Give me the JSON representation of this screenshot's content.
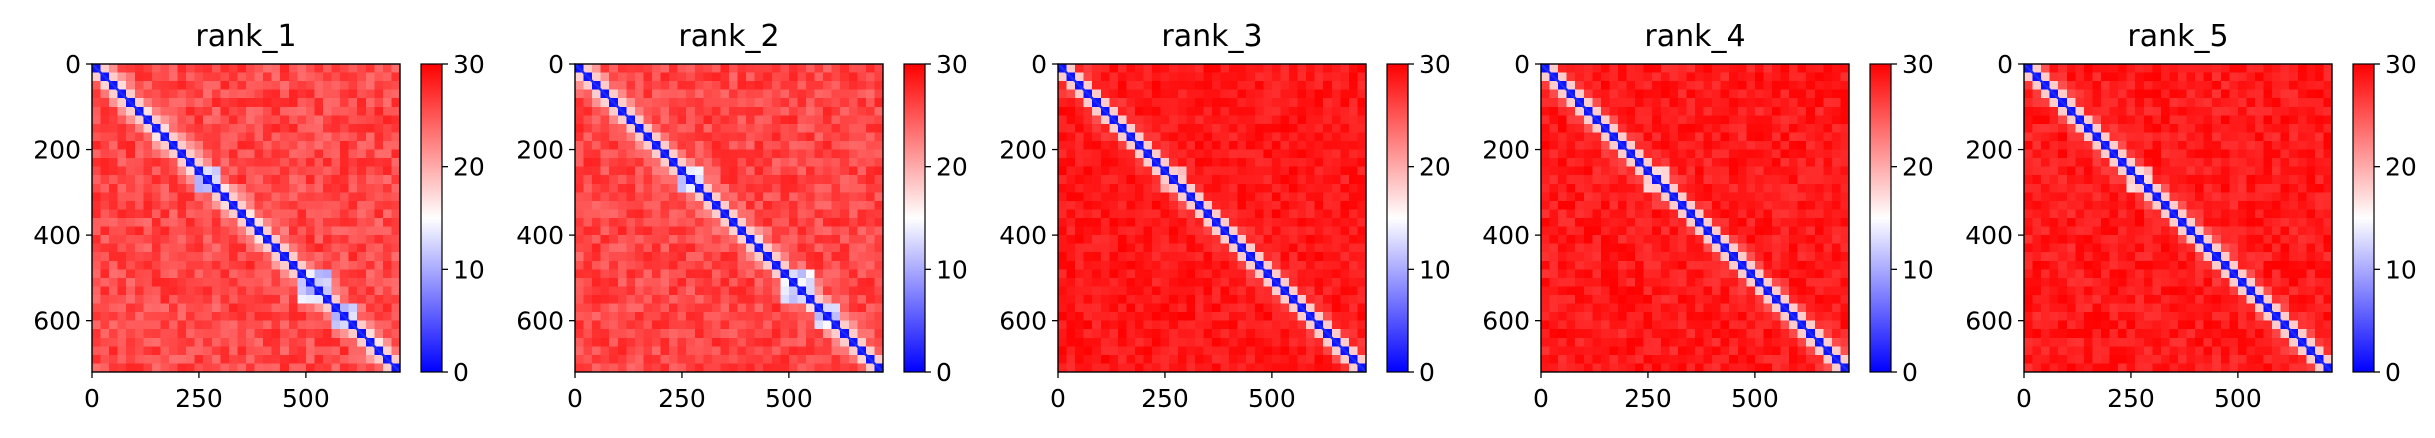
{
  "chart_data": [
    {
      "type": "heatmap",
      "title": "rank_1",
      "x_ticks": [
        0,
        250,
        500
      ],
      "y_ticks": [
        0,
        200,
        400,
        600
      ],
      "colorbar_ticks": [
        0,
        10,
        20,
        30
      ],
      "xlim": [
        0,
        720
      ],
      "ylim": [
        720,
        0
      ],
      "vmin": 0,
      "vmax": 30,
      "colormap": [
        "#0000ff",
        "#ffffff",
        "#ff0000"
      ],
      "features": {
        "background": 28,
        "diagonal": 1,
        "domain_blocks": [
          [
            250,
            300
          ],
          [
            480,
            560
          ],
          [
            560,
            620
          ]
        ],
        "band_strength": 0.9
      }
    },
    {
      "type": "heatmap",
      "title": "rank_2",
      "x_ticks": [
        0,
        250,
        500
      ],
      "y_ticks": [
        0,
        200,
        400,
        600
      ],
      "colorbar_ticks": [
        0,
        10,
        20,
        30
      ],
      "xlim": [
        0,
        720
      ],
      "ylim": [
        720,
        0
      ],
      "vmin": 0,
      "vmax": 30,
      "colormap": [
        "#0000ff",
        "#ffffff",
        "#ff0000"
      ],
      "features": {
        "background": 28,
        "diagonal": 1,
        "domain_blocks": [
          [
            250,
            300
          ],
          [
            480,
            560
          ],
          [
            560,
            620
          ]
        ],
        "band_strength": 0.85
      }
    },
    {
      "type": "heatmap",
      "title": "rank_3",
      "x_ticks": [
        0,
        250,
        500
      ],
      "y_ticks": [
        0,
        200,
        400,
        600
      ],
      "colorbar_ticks": [
        0,
        10,
        20,
        30
      ],
      "xlim": [
        0,
        720
      ],
      "ylim": [
        720,
        0
      ],
      "vmin": 0,
      "vmax": 30,
      "colormap": [
        "#0000ff",
        "#ffffff",
        "#ff0000"
      ],
      "features": {
        "background": 30,
        "diagonal": 1,
        "domain_blocks": [
          [
            250,
            300
          ]
        ],
        "band_strength": 0.55
      }
    },
    {
      "type": "heatmap",
      "title": "rank_4",
      "x_ticks": [
        0,
        250,
        500
      ],
      "y_ticks": [
        0,
        200,
        400,
        600
      ],
      "colorbar_ticks": [
        0,
        10,
        20,
        30
      ],
      "xlim": [
        0,
        720
      ],
      "ylim": [
        720,
        0
      ],
      "vmin": 0,
      "vmax": 30,
      "colormap": [
        "#0000ff",
        "#ffffff",
        "#ff0000"
      ],
      "features": {
        "background": 30,
        "diagonal": 1,
        "domain_blocks": [
          [
            250,
            300
          ]
        ],
        "band_strength": 0.6
      }
    },
    {
      "type": "heatmap",
      "title": "rank_5",
      "x_ticks": [
        0,
        250,
        500
      ],
      "y_ticks": [
        0,
        200,
        400,
        600
      ],
      "colorbar_ticks": [
        0,
        10,
        20,
        30
      ],
      "xlim": [
        0,
        720
      ],
      "ylim": [
        720,
        0
      ],
      "vmin": 0,
      "vmax": 30,
      "colormap": [
        "#0000ff",
        "#ffffff",
        "#ff0000"
      ],
      "features": {
        "background": 30,
        "diagonal": 1,
        "domain_blocks": [
          [
            250,
            300
          ]
        ],
        "band_strength": 0.6
      }
    }
  ]
}
